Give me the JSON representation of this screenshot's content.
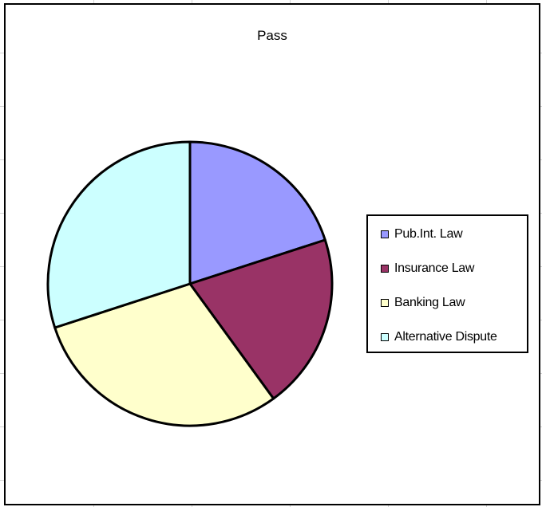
{
  "chart_data": {
    "type": "pie",
    "title": "Pass",
    "categories": [
      "Pub.Int. Law",
      "Insurance Law",
      "Banking Law",
      "Alternative Dispute"
    ],
    "values": [
      20,
      20,
      30,
      30
    ],
    "colors": [
      "#9999ff",
      "#993366",
      "#ffffcc",
      "#ccffff"
    ],
    "start_angle_deg": 0,
    "direction": "clockwise",
    "legend": "right"
  }
}
